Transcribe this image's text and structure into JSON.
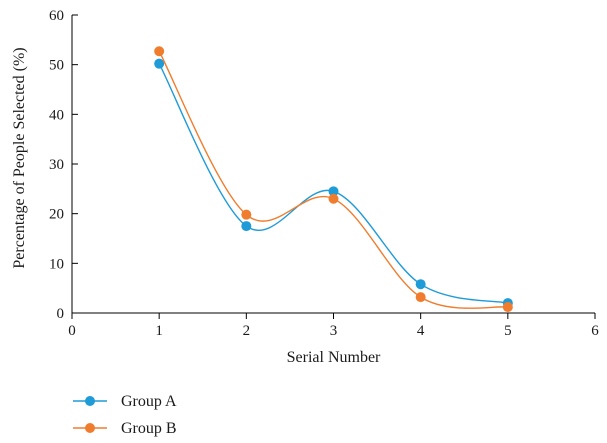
{
  "chart_data": {
    "type": "line",
    "xlabel": "Serial Number",
    "ylabel": "Percentage of People Selected (%)",
    "xlim": [
      0,
      6
    ],
    "ylim": [
      0,
      60
    ],
    "xticks": [
      "0",
      "1",
      "2",
      "3",
      "4",
      "5",
      "6"
    ],
    "yticks": [
      "0",
      "10",
      "20",
      "30",
      "40",
      "50",
      "60"
    ],
    "grid": false,
    "legend_position": "bottom-left",
    "smooth": true,
    "series": [
      {
        "name": "Group A",
        "color": "#1f9bd7",
        "x": [
          1,
          2,
          3,
          4,
          5
        ],
        "y": [
          50.2,
          17.5,
          24.5,
          5.8,
          2.0
        ]
      },
      {
        "name": "Group B",
        "color": "#f07d2e",
        "x": [
          1,
          2,
          3,
          4,
          5
        ],
        "y": [
          52.7,
          19.8,
          23.0,
          3.2,
          1.2
        ]
      }
    ]
  }
}
